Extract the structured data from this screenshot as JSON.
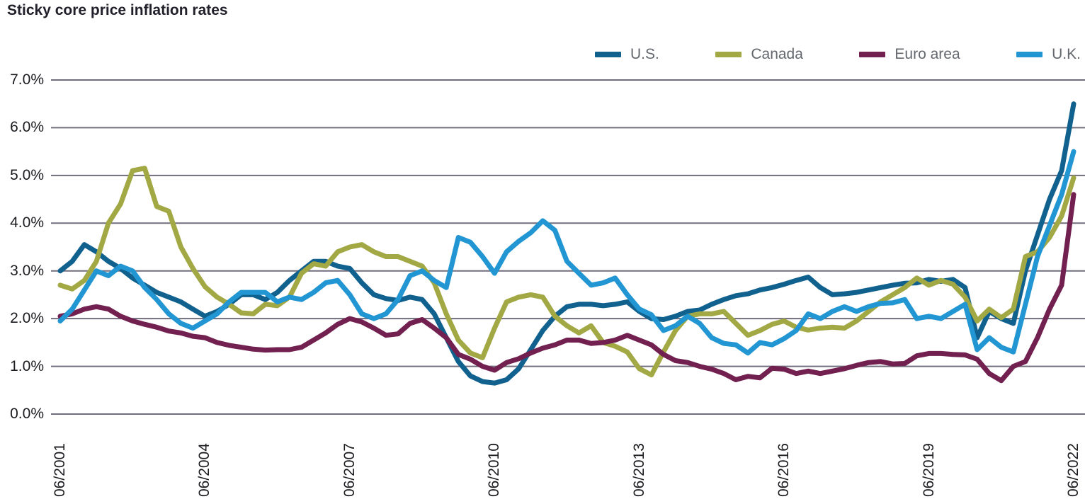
{
  "title": "Sticky core price inflation rates",
  "colors": {
    "us": "#11618f",
    "canada": "#a1a844",
    "euro_area": "#722050",
    "uk": "#2196d2",
    "grid": "#716d7c",
    "title_text": "#21202b",
    "legend_text": "#63676e",
    "axis_text": "#1c1b20"
  },
  "legend": [
    {
      "label": "U.S.",
      "color": "#11618f"
    },
    {
      "label": "Canada",
      "color": "#a1a844"
    },
    {
      "label": "Euro area",
      "color": "#722050"
    },
    {
      "label": "U.K.",
      "color": "#2196d2"
    }
  ],
  "y_axis": {
    "ticks": [
      {
        "label": "7.0%",
        "value": 7.0
      },
      {
        "label": "6.0%",
        "value": 6.0
      },
      {
        "label": "5.0%",
        "value": 5.0
      },
      {
        "label": "4.0%",
        "value": 4.0
      },
      {
        "label": "3.0%",
        "value": 3.0
      },
      {
        "label": "2.0%",
        "value": 2.0
      },
      {
        "label": "1.0%",
        "value": 1.0
      },
      {
        "label": "0.0%",
        "value": 0.0
      }
    ]
  },
  "x_axis": {
    "ticks": [
      "06/2001",
      "06/2004",
      "06/2007",
      "06/2010",
      "06/2013",
      "06/2016",
      "06/2019",
      "06/2022"
    ]
  },
  "chart_data": {
    "type": "line",
    "title": "Sticky core price inflation rates",
    "xlabel": "",
    "ylabel": "",
    "ylim": [
      0.0,
      7.0
    ],
    "grid": "horizontal",
    "legend_position": "top-right",
    "x": [
      "06/2001",
      "09/2001",
      "12/2001",
      "03/2002",
      "06/2002",
      "09/2002",
      "12/2002",
      "03/2003",
      "06/2003",
      "09/2003",
      "12/2003",
      "03/2004",
      "06/2004",
      "09/2004",
      "12/2004",
      "03/2005",
      "06/2005",
      "09/2005",
      "12/2005",
      "03/2006",
      "06/2006",
      "09/2006",
      "12/2006",
      "03/2007",
      "06/2007",
      "09/2007",
      "12/2007",
      "03/2008",
      "06/2008",
      "09/2008",
      "12/2008",
      "03/2009",
      "06/2009",
      "09/2009",
      "12/2009",
      "03/2010",
      "06/2010",
      "09/2010",
      "12/2010",
      "03/2011",
      "06/2011",
      "09/2011",
      "12/2011",
      "03/2012",
      "06/2012",
      "09/2012",
      "12/2012",
      "03/2013",
      "06/2013",
      "09/2013",
      "12/2013",
      "03/2014",
      "06/2014",
      "09/2014",
      "12/2014",
      "03/2015",
      "06/2015",
      "09/2015",
      "12/2015",
      "03/2016",
      "06/2016",
      "09/2016",
      "12/2016",
      "03/2017",
      "06/2017",
      "09/2017",
      "12/2017",
      "03/2018",
      "06/2018",
      "09/2018",
      "12/2018",
      "03/2019",
      "06/2019",
      "09/2019",
      "12/2019",
      "03/2020",
      "06/2020",
      "09/2020",
      "12/2020",
      "03/2021",
      "06/2021",
      "09/2021",
      "12/2021",
      "03/2022",
      "06/2022"
    ],
    "series": [
      {
        "name": "U.S.",
        "color": "#11618f",
        "values": [
          3.0,
          3.2,
          3.55,
          3.4,
          3.2,
          3.05,
          2.85,
          2.7,
          2.55,
          2.45,
          2.35,
          2.2,
          2.05,
          2.15,
          2.3,
          2.5,
          2.5,
          2.4,
          2.55,
          2.8,
          3.0,
          3.2,
          3.2,
          3.1,
          3.05,
          2.75,
          2.5,
          2.42,
          2.38,
          2.45,
          2.4,
          2.1,
          1.6,
          1.1,
          0.8,
          0.68,
          0.65,
          0.72,
          0.95,
          1.35,
          1.75,
          2.05,
          2.25,
          2.3,
          2.3,
          2.27,
          2.3,
          2.35,
          2.15,
          2.0,
          1.98,
          2.05,
          2.15,
          2.18,
          2.3,
          2.4,
          2.48,
          2.52,
          2.6,
          2.65,
          2.72,
          2.8,
          2.87,
          2.65,
          2.5,
          2.52,
          2.55,
          2.6,
          2.65,
          2.7,
          2.74,
          2.75,
          2.82,
          2.78,
          2.82,
          2.65,
          1.6,
          2.15,
          2.0,
          1.9,
          3.0,
          3.75,
          4.5,
          5.1,
          6.5
        ]
      },
      {
        "name": "Canada",
        "color": "#a1a844",
        "values": [
          2.7,
          2.62,
          2.8,
          3.2,
          4.0,
          4.4,
          5.1,
          5.15,
          4.35,
          4.25,
          3.5,
          3.05,
          2.67,
          2.45,
          2.3,
          2.12,
          2.1,
          2.3,
          2.27,
          2.45,
          2.95,
          3.15,
          3.1,
          3.4,
          3.5,
          3.55,
          3.4,
          3.3,
          3.3,
          3.2,
          3.1,
          2.75,
          2.1,
          1.55,
          1.28,
          1.18,
          1.8,
          2.35,
          2.45,
          2.5,
          2.45,
          2.05,
          1.85,
          1.7,
          1.85,
          1.5,
          1.42,
          1.3,
          0.95,
          0.82,
          1.3,
          1.75,
          2.05,
          2.1,
          2.1,
          2.15,
          1.9,
          1.65,
          1.75,
          1.88,
          1.95,
          1.82,
          1.76,
          1.8,
          1.82,
          1.8,
          1.95,
          2.15,
          2.35,
          2.5,
          2.65,
          2.85,
          2.7,
          2.8,
          2.72,
          2.45,
          1.95,
          2.2,
          2.02,
          2.2,
          3.3,
          3.4,
          3.7,
          4.15,
          4.95
        ]
      },
      {
        "name": "Euro area",
        "color": "#722050",
        "values": [
          2.05,
          2.1,
          2.2,
          2.25,
          2.2,
          2.05,
          1.95,
          1.88,
          1.82,
          1.74,
          1.7,
          1.63,
          1.6,
          1.5,
          1.44,
          1.4,
          1.36,
          1.34,
          1.35,
          1.35,
          1.4,
          1.55,
          1.7,
          1.88,
          2.0,
          1.93,
          1.8,
          1.65,
          1.68,
          1.9,
          1.98,
          1.8,
          1.6,
          1.25,
          1.15,
          1.0,
          0.92,
          1.08,
          1.16,
          1.28,
          1.38,
          1.45,
          1.55,
          1.55,
          1.48,
          1.5,
          1.55,
          1.65,
          1.55,
          1.45,
          1.25,
          1.12,
          1.08,
          1.0,
          0.94,
          0.85,
          0.72,
          0.79,
          0.76,
          0.96,
          0.94,
          0.85,
          0.9,
          0.85,
          0.9,
          0.95,
          1.02,
          1.08,
          1.1,
          1.05,
          1.06,
          1.22,
          1.27,
          1.27,
          1.25,
          1.24,
          1.15,
          0.85,
          0.7,
          1.0,
          1.1,
          1.6,
          2.2,
          2.7,
          4.6
        ]
      },
      {
        "name": "U.K.",
        "color": "#2196d2",
        "values": [
          1.95,
          2.2,
          2.6,
          3.0,
          2.9,
          3.1,
          3.0,
          2.65,
          2.4,
          2.1,
          1.9,
          1.8,
          1.95,
          2.1,
          2.35,
          2.55,
          2.55,
          2.55,
          2.35,
          2.45,
          2.4,
          2.55,
          2.75,
          2.8,
          2.5,
          2.1,
          2.0,
          2.1,
          2.4,
          2.9,
          3.0,
          2.8,
          2.65,
          3.7,
          3.6,
          3.3,
          2.95,
          3.4,
          3.62,
          3.8,
          4.05,
          3.85,
          3.2,
          2.95,
          2.7,
          2.75,
          2.85,
          2.5,
          2.2,
          2.08,
          1.75,
          1.85,
          2.05,
          1.9,
          1.6,
          1.48,
          1.45,
          1.28,
          1.5,
          1.45,
          1.58,
          1.75,
          2.1,
          2.0,
          2.15,
          2.25,
          2.15,
          2.25,
          2.32,
          2.33,
          2.4,
          2.0,
          2.05,
          2.0,
          2.15,
          2.3,
          1.35,
          1.6,
          1.4,
          1.3,
          2.3,
          3.3,
          3.95,
          4.6,
          5.5
        ]
      }
    ]
  }
}
